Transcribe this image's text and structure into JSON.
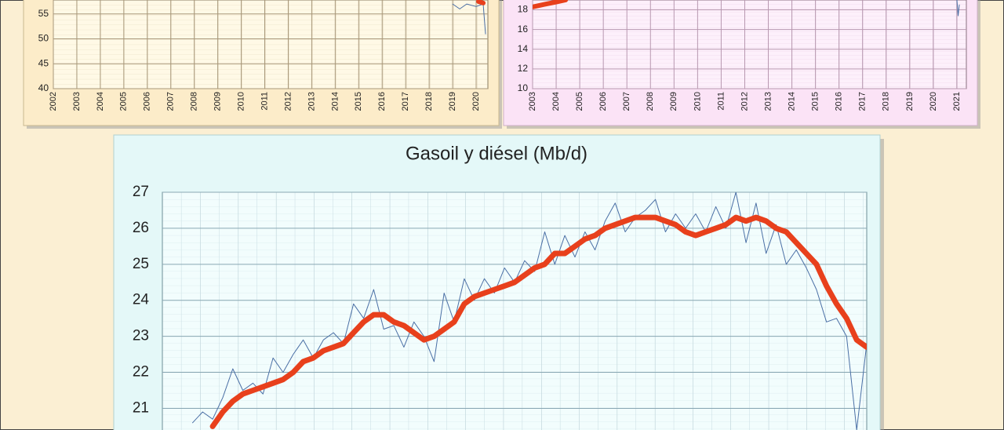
{
  "chart_data": [
    {
      "type": "line",
      "xlim": [
        2002,
        2020.5
      ],
      "xticks": [
        2002,
        2003,
        2004,
        2005,
        2006,
        2007,
        2008,
        2009,
        2010,
        2011,
        2012,
        2013,
        2014,
        2015,
        2016,
        2017,
        2018,
        2019,
        2020
      ],
      "ylim": [
        40,
        57.8
      ],
      "yticks": [
        40,
        45,
        50,
        55
      ],
      "grid": true,
      "series": [
        {
          "color": "#4a6fa5",
          "line_width": 1,
          "x": [
            2019.0,
            2019.3,
            2019.6,
            2020.0,
            2020.3,
            2020.4
          ],
          "values": [
            57,
            56,
            57,
            56.5,
            57,
            51
          ]
        },
        {
          "color": "#e8401c",
          "line_width": 6,
          "x": [
            2020.1,
            2020.3
          ],
          "values": [
            57.5,
            57.2
          ]
        }
      ]
    },
    {
      "type": "line",
      "xlim": [
        2003,
        2021.4
      ],
      "xticks": [
        2003,
        2004,
        2005,
        2006,
        2007,
        2008,
        2009,
        2010,
        2011,
        2012,
        2013,
        2014,
        2015,
        2016,
        2017,
        2018,
        2019,
        2020,
        2021
      ],
      "ylim": [
        10,
        19
      ],
      "yticks": [
        10,
        12,
        14,
        16,
        18
      ],
      "grid": true,
      "series": [
        {
          "color": "#4a6fa5",
          "line_width": 1,
          "x": [
            2021.0,
            2021.05,
            2021.1
          ],
          "values": [
            19,
            17.4,
            18.5
          ]
        },
        {
          "color": "#e8401c",
          "line_width": 6,
          "x": [
            2003,
            2003.5,
            2004,
            2004.4
          ],
          "values": [
            18.3,
            18.55,
            18.8,
            19.0
          ]
        }
      ]
    },
    {
      "type": "line",
      "title": "Gasoil y diésel (Mb/d)",
      "ylim": [
        20.4,
        27
      ],
      "yticks": [
        21,
        22,
        23,
        24,
        25,
        26,
        27
      ],
      "grid": true,
      "series": [
        {
          "color": "#4a6fa5",
          "line_width": 1,
          "values": [
            null,
            null,
            null,
            20.6,
            20.9,
            20.7,
            21.3,
            22.1,
            21.5,
            21.7,
            21.4,
            22.4,
            22.0,
            22.5,
            22.9,
            22.4,
            22.9,
            23.1,
            22.8,
            23.9,
            23.5,
            24.3,
            23.2,
            23.3,
            22.7,
            23.4,
            23.0,
            22.3,
            24.2,
            23.4,
            24.6,
            24.0,
            24.6,
            24.2,
            24.9,
            24.5,
            25.1,
            24.8,
            25.9,
            25.0,
            25.8,
            25.2,
            25.9,
            25.4,
            26.2,
            26.7,
            25.9,
            26.3,
            26.5,
            26.8,
            25.9,
            26.4,
            26.0,
            26.4,
            25.9,
            26.6,
            26.0,
            27.0,
            25.6,
            26.7,
            25.3,
            26.1,
            25.0,
            25.4,
            24.9,
            24.3,
            23.4,
            23.5,
            23.0,
            20.4,
            22.8
          ]
        },
        {
          "color": "#e8401c",
          "line_width": 7,
          "values": [
            null,
            null,
            null,
            null,
            null,
            20.5,
            20.9,
            21.2,
            21.4,
            21.5,
            21.6,
            21.7,
            21.8,
            22.0,
            22.3,
            22.4,
            22.6,
            22.7,
            22.8,
            23.1,
            23.4,
            23.6,
            23.6,
            23.4,
            23.3,
            23.1,
            22.9,
            23.0,
            23.2,
            23.4,
            23.9,
            24.1,
            24.2,
            24.3,
            24.4,
            24.5,
            24.7,
            24.9,
            25.0,
            25.3,
            25.3,
            25.5,
            25.7,
            25.8,
            26.0,
            26.1,
            26.2,
            26.3,
            26.3,
            26.3,
            26.2,
            26.1,
            25.9,
            25.8,
            25.9,
            26.0,
            26.1,
            26.3,
            26.2,
            26.3,
            26.2,
            26.0,
            25.9,
            25.6,
            25.3,
            25.0,
            24.4,
            23.9,
            23.5,
            22.9,
            22.7
          ]
        }
      ]
    }
  ]
}
